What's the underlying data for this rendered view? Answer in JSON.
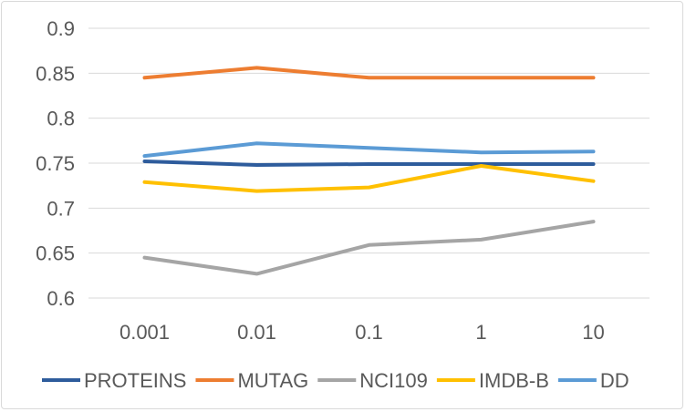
{
  "chart_data": {
    "type": "line",
    "title": "",
    "xlabel": "",
    "ylabel": "",
    "categories": [
      "0.001",
      "0.01",
      "0.1",
      "1",
      "10"
    ],
    "ylim": [
      0.6,
      0.9
    ],
    "yticks": [
      "0.6",
      "0.65",
      "0.7",
      "0.75",
      "0.8",
      "0.85",
      "0.9"
    ],
    "grid": "horizontal",
    "legend": "bottom",
    "series": [
      {
        "name": "PROTEINS",
        "color": "#2e5c9c",
        "values": [
          0.752,
          0.748,
          0.749,
          0.749,
          0.749
        ]
      },
      {
        "name": "MUTAG",
        "color": "#ed7d31",
        "values": [
          0.845,
          0.856,
          0.845,
          0.845,
          0.845
        ]
      },
      {
        "name": "NCI109",
        "color": "#a5a5a5",
        "values": [
          0.645,
          0.627,
          0.659,
          0.665,
          0.685
        ]
      },
      {
        "name": "IMDB-B",
        "color": "#ffc000",
        "values": [
          0.729,
          0.719,
          0.723,
          0.747,
          0.73
        ]
      },
      {
        "name": "DD",
        "color": "#5b9bd5",
        "values": [
          0.758,
          0.772,
          0.767,
          0.762,
          0.763
        ]
      }
    ]
  }
}
